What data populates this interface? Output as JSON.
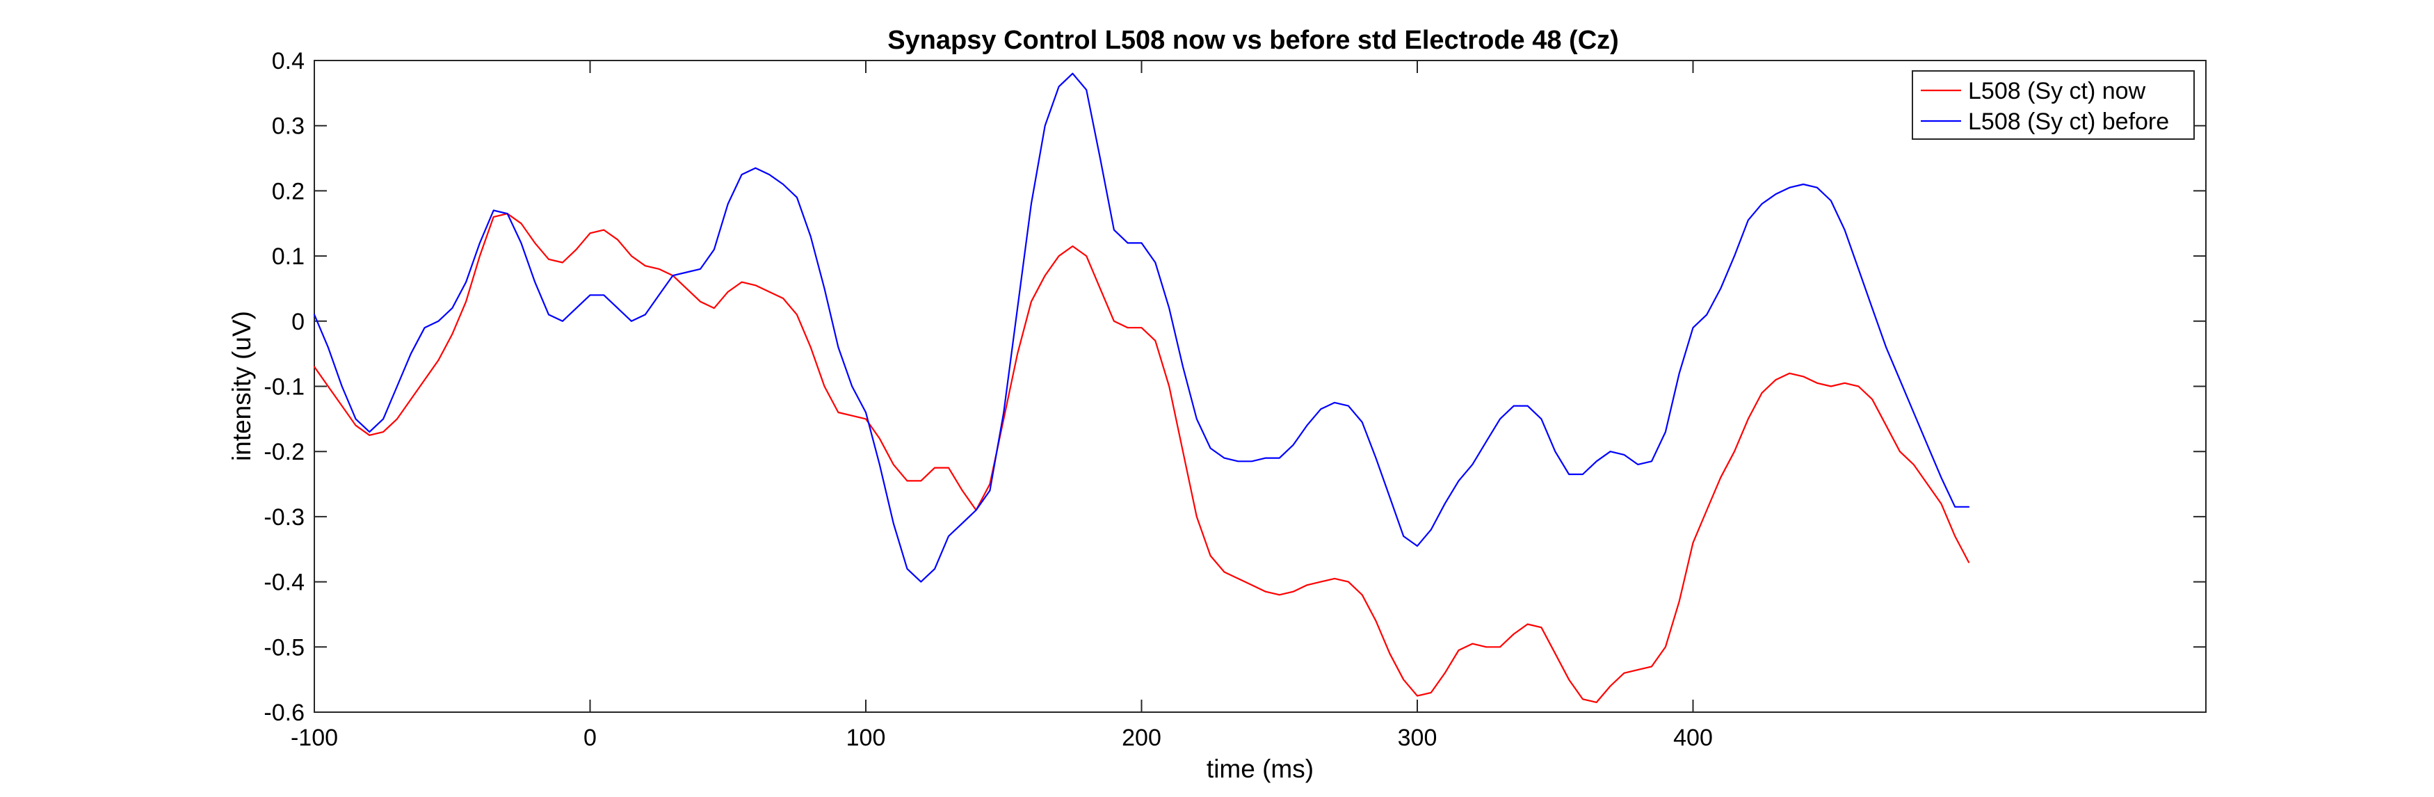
{
  "chart_data": {
    "type": "line",
    "title": "Synapsy Control L508 now vs before std Electrode 48 (Cz)",
    "xlabel": "time (ms)",
    "ylabel": "intensity (uV)",
    "xlim": [
      -100,
      586
    ],
    "ylim": [
      -0.6,
      0.4
    ],
    "x_ticks": [
      -100,
      0,
      100,
      200,
      300,
      400
    ],
    "y_ticks": [
      -0.6,
      -0.5,
      -0.4,
      -0.3,
      -0.2,
      -0.1,
      0,
      0.1,
      0.2,
      0.3,
      0.4
    ],
    "y_tick_labels": [
      "-0.6",
      "-0.5",
      "-0.4",
      "-0.3",
      "-0.2",
      "-0.1",
      "0",
      "0.1",
      "0.2",
      "0.3",
      "0.4"
    ],
    "grid": false,
    "legend_position": "top-right",
    "series": [
      {
        "name": "L508 (Sy ct) now",
        "color": "#ff0000",
        "points": [
          [
            -100,
            -0.07
          ],
          [
            -95,
            -0.1
          ],
          [
            -90,
            -0.13
          ],
          [
            -85,
            -0.16
          ],
          [
            -80,
            -0.175
          ],
          [
            -75,
            -0.17
          ],
          [
            -70,
            -0.15
          ],
          [
            -65,
            -0.12
          ],
          [
            -60,
            -0.09
          ],
          [
            -55,
            -0.06
          ],
          [
            -50,
            -0.02
          ],
          [
            -45,
            0.03
          ],
          [
            -40,
            0.1
          ],
          [
            -35,
            0.16
          ],
          [
            -30,
            0.165
          ],
          [
            -25,
            0.15
          ],
          [
            -20,
            0.12
          ],
          [
            -15,
            0.095
          ],
          [
            -10,
            0.09
          ],
          [
            -5,
            0.11
          ],
          [
            0,
            0.135
          ],
          [
            5,
            0.14
          ],
          [
            10,
            0.125
          ],
          [
            15,
            0.1
          ],
          [
            20,
            0.085
          ],
          [
            25,
            0.08
          ],
          [
            30,
            0.07
          ],
          [
            35,
            0.05
          ],
          [
            40,
            0.03
          ],
          [
            45,
            0.02
          ],
          [
            50,
            0.045
          ],
          [
            55,
            0.06
          ],
          [
            60,
            0.055
          ],
          [
            65,
            0.045
          ],
          [
            70,
            0.035
          ],
          [
            75,
            0.01
          ],
          [
            80,
            -0.04
          ],
          [
            85,
            -0.1
          ],
          [
            90,
            -0.14
          ],
          [
            95,
            -0.145
          ],
          [
            100,
            -0.15
          ],
          [
            105,
            -0.18
          ],
          [
            110,
            -0.22
          ],
          [
            115,
            -0.245
          ],
          [
            120,
            -0.245
          ],
          [
            125,
            -0.225
          ],
          [
            130,
            -0.225
          ],
          [
            135,
            -0.26
          ],
          [
            140,
            -0.29
          ],
          [
            145,
            -0.25
          ],
          [
            150,
            -0.15
          ],
          [
            155,
            -0.05
          ],
          [
            160,
            0.03
          ],
          [
            165,
            0.07
          ],
          [
            170,
            0.1
          ],
          [
            175,
            0.115
          ],
          [
            180,
            0.1
          ],
          [
            185,
            0.05
          ],
          [
            190,
            0.0
          ],
          [
            195,
            -0.01
          ],
          [
            200,
            -0.01
          ],
          [
            205,
            -0.03
          ],
          [
            210,
            -0.1
          ],
          [
            215,
            -0.2
          ],
          [
            220,
            -0.3
          ],
          [
            225,
            -0.36
          ],
          [
            230,
            -0.385
          ],
          [
            235,
            -0.395
          ],
          [
            240,
            -0.405
          ],
          [
            245,
            -0.415
          ],
          [
            250,
            -0.42
          ],
          [
            255,
            -0.415
          ],
          [
            260,
            -0.405
          ],
          [
            265,
            -0.4
          ],
          [
            270,
            -0.395
          ],
          [
            275,
            -0.4
          ],
          [
            280,
            -0.42
          ],
          [
            285,
            -0.46
          ],
          [
            290,
            -0.51
          ],
          [
            295,
            -0.55
          ],
          [
            300,
            -0.575
          ],
          [
            305,
            -0.57
          ],
          [
            310,
            -0.54
          ],
          [
            315,
            -0.505
          ],
          [
            320,
            -0.495
          ],
          [
            325,
            -0.5
          ],
          [
            330,
            -0.5
          ],
          [
            335,
            -0.48
          ],
          [
            340,
            -0.465
          ],
          [
            345,
            -0.47
          ],
          [
            350,
            -0.51
          ],
          [
            355,
            -0.55
          ],
          [
            360,
            -0.58
          ],
          [
            365,
            -0.585
          ],
          [
            370,
            -0.56
          ],
          [
            375,
            -0.54
          ],
          [
            380,
            -0.535
          ],
          [
            385,
            -0.53
          ],
          [
            390,
            -0.5
          ],
          [
            395,
            -0.43
          ],
          [
            400,
            -0.34
          ],
          [
            405,
            -0.29
          ],
          [
            410,
            -0.24
          ],
          [
            415,
            -0.2
          ],
          [
            420,
            -0.15
          ],
          [
            425,
            -0.11
          ],
          [
            430,
            -0.09
          ],
          [
            435,
            -0.08
          ],
          [
            440,
            -0.085
          ],
          [
            445,
            -0.095
          ],
          [
            450,
            -0.1
          ],
          [
            455,
            -0.095
          ],
          [
            460,
            -0.1
          ],
          [
            465,
            -0.12
          ],
          [
            470,
            -0.16
          ],
          [
            475,
            -0.2
          ],
          [
            480,
            -0.22
          ],
          [
            485,
            -0.25
          ],
          [
            490,
            -0.28
          ],
          [
            495,
            -0.33
          ],
          [
            500,
            -0.37
          ]
        ]
      },
      {
        "name": "L508 (Sy ct) before",
        "color": "#0000ff",
        "points": [
          [
            -100,
            0.01
          ],
          [
            -95,
            -0.04
          ],
          [
            -90,
            -0.1
          ],
          [
            -85,
            -0.15
          ],
          [
            -80,
            -0.17
          ],
          [
            -75,
            -0.15
          ],
          [
            -70,
            -0.1
          ],
          [
            -65,
            -0.05
          ],
          [
            -60,
            -0.01
          ],
          [
            -55,
            0.0
          ],
          [
            -50,
            0.02
          ],
          [
            -45,
            0.06
          ],
          [
            -40,
            0.12
          ],
          [
            -35,
            0.17
          ],
          [
            -30,
            0.165
          ],
          [
            -25,
            0.12
          ],
          [
            -20,
            0.06
          ],
          [
            -15,
            0.01
          ],
          [
            -10,
            0.0
          ],
          [
            -5,
            0.02
          ],
          [
            0,
            0.04
          ],
          [
            5,
            0.04
          ],
          [
            10,
            0.02
          ],
          [
            15,
            0.0
          ],
          [
            20,
            0.01
          ],
          [
            25,
            0.04
          ],
          [
            30,
            0.07
          ],
          [
            35,
            0.075
          ],
          [
            40,
            0.08
          ],
          [
            45,
            0.11
          ],
          [
            50,
            0.18
          ],
          [
            55,
            0.225
          ],
          [
            60,
            0.235
          ],
          [
            65,
            0.225
          ],
          [
            70,
            0.21
          ],
          [
            75,
            0.19
          ],
          [
            80,
            0.13
          ],
          [
            85,
            0.05
          ],
          [
            90,
            -0.04
          ],
          [
            95,
            -0.1
          ],
          [
            100,
            -0.14
          ],
          [
            105,
            -0.22
          ],
          [
            110,
            -0.31
          ],
          [
            115,
            -0.38
          ],
          [
            120,
            -0.4
          ],
          [
            125,
            -0.38
          ],
          [
            130,
            -0.33
          ],
          [
            135,
            -0.31
          ],
          [
            140,
            -0.29
          ],
          [
            145,
            -0.26
          ],
          [
            150,
            -0.14
          ],
          [
            155,
            0.02
          ],
          [
            160,
            0.18
          ],
          [
            165,
            0.3
          ],
          [
            170,
            0.36
          ],
          [
            175,
            0.38
          ],
          [
            180,
            0.355
          ],
          [
            185,
            0.25
          ],
          [
            190,
            0.14
          ],
          [
            195,
            0.12
          ],
          [
            200,
            0.12
          ],
          [
            205,
            0.09
          ],
          [
            210,
            0.02
          ],
          [
            215,
            -0.07
          ],
          [
            220,
            -0.15
          ],
          [
            225,
            -0.195
          ],
          [
            230,
            -0.21
          ],
          [
            235,
            -0.215
          ],
          [
            240,
            -0.215
          ],
          [
            245,
            -0.21
          ],
          [
            250,
            -0.21
          ],
          [
            255,
            -0.19
          ],
          [
            260,
            -0.16
          ],
          [
            265,
            -0.135
          ],
          [
            270,
            -0.125
          ],
          [
            275,
            -0.13
          ],
          [
            280,
            -0.155
          ],
          [
            285,
            -0.21
          ],
          [
            290,
            -0.27
          ],
          [
            295,
            -0.33
          ],
          [
            300,
            -0.345
          ],
          [
            305,
            -0.32
          ],
          [
            310,
            -0.28
          ],
          [
            315,
            -0.245
          ],
          [
            320,
            -0.22
          ],
          [
            325,
            -0.185
          ],
          [
            330,
            -0.15
          ],
          [
            335,
            -0.13
          ],
          [
            340,
            -0.13
          ],
          [
            345,
            -0.15
          ],
          [
            350,
            -0.2
          ],
          [
            355,
            -0.235
          ],
          [
            360,
            -0.235
          ],
          [
            365,
            -0.215
          ],
          [
            370,
            -0.2
          ],
          [
            375,
            -0.205
          ],
          [
            380,
            -0.22
          ],
          [
            385,
            -0.215
          ],
          [
            390,
            -0.17
          ],
          [
            395,
            -0.08
          ],
          [
            400,
            -0.01
          ],
          [
            405,
            0.01
          ],
          [
            410,
            0.05
          ],
          [
            415,
            0.1
          ],
          [
            420,
            0.155
          ],
          [
            425,
            0.18
          ],
          [
            430,
            0.195
          ],
          [
            435,
            0.205
          ],
          [
            440,
            0.21
          ],
          [
            445,
            0.205
          ],
          [
            450,
            0.185
          ],
          [
            455,
            0.14
          ],
          [
            460,
            0.08
          ],
          [
            465,
            0.02
          ],
          [
            470,
            -0.04
          ],
          [
            475,
            -0.09
          ],
          [
            480,
            -0.14
          ],
          [
            485,
            -0.19
          ],
          [
            490,
            -0.24
          ],
          [
            495,
            -0.285
          ],
          [
            500,
            -0.285
          ]
        ]
      }
    ]
  }
}
